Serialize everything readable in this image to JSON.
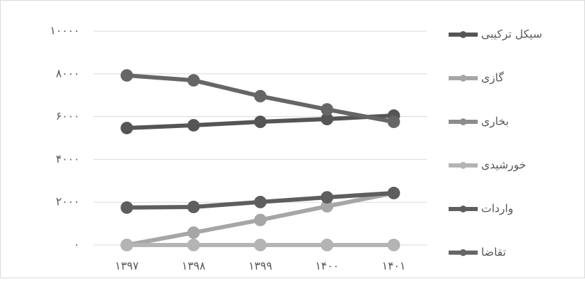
{
  "chart_data": {
    "type": "line",
    "categories": [
      "۱۳۹۷",
      "۱۳۹۸",
      "۱۳۹۹",
      "۱۴۰۰",
      "۱۴۰۱"
    ],
    "series": [
      {
        "name": "سیکل ترکیبی",
        "color": "#555555",
        "values": [
          5470,
          5600,
          5760,
          5890,
          6050
        ]
      },
      {
        "name": "گازی",
        "color": "#a6a6a6",
        "values": [
          0,
          580,
          1170,
          1810,
          2430
        ]
      },
      {
        "name": "بخاری",
        "color": "#8c8c8c",
        "values": [
          0,
          0,
          0,
          0,
          0
        ]
      },
      {
        "name": "خورشیدی",
        "color": "#b4b4b4",
        "values": [
          0,
          0,
          0,
          0,
          0
        ]
      },
      {
        "name": "واردات",
        "color": "#5e5e5e",
        "values": [
          1750,
          1780,
          2010,
          2230,
          2430
        ]
      },
      {
        "name": "تقاضا",
        "color": "#666666",
        "values": [
          7930,
          7700,
          6960,
          6340,
          5760
        ]
      }
    ],
    "ylim": [
      0,
      10000
    ],
    "yticks": [
      {
        "value": 0,
        "label": "۰"
      },
      {
        "value": 2000,
        "label": "۲۰۰۰"
      },
      {
        "value": 4000,
        "label": "۴۰۰۰"
      },
      {
        "value": 6000,
        "label": "۶۰۰۰"
      },
      {
        "value": 8000,
        "label": "۸۰۰۰"
      },
      {
        "value": 10000,
        "label": "۱۰۰۰۰"
      }
    ],
    "grid": true,
    "legend": "right"
  }
}
